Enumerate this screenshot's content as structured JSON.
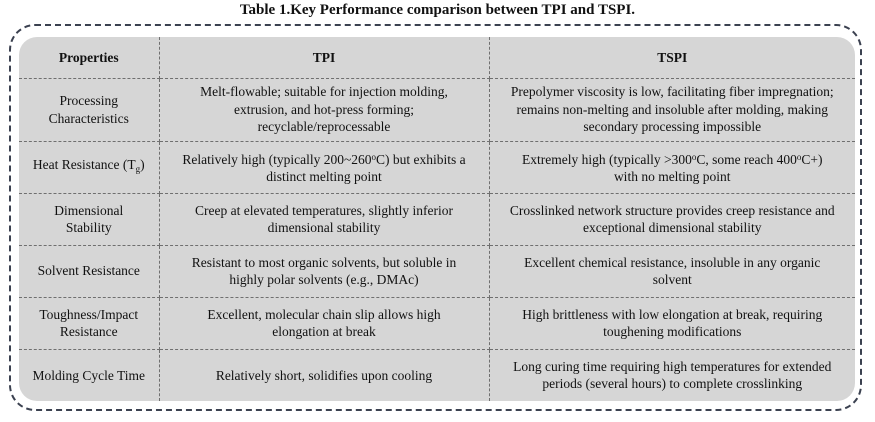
{
  "caption": "Table 1.Key Performance comparison between TPI and TSPI.",
  "headers": [
    "Properties",
    "TPI",
    "TSPI"
  ],
  "rows": [
    {
      "property": "Processing Characteristics",
      "tpi": "Melt-flowable; suitable for injection molding, extrusion, and hot-press forming; recyclable/reprocessable",
      "tspi": "Prepolymer viscosity is low, facilitating fiber impregnation; remains non-melting and insoluble after molding, making secondary processing impossible"
    },
    {
      "property_prefix": "Heat Resistance (T",
      "property_sub": "g",
      "property_suffix": ")",
      "tpi_a": "Relatively high (typically 200~260",
      "tpi_deg": "o",
      "tpi_b": "C) but exhibits a distinct melting point",
      "tspi_a": "Extremely high (typically >300",
      "tspi_deg1": "o",
      "tspi_b": "C, some reach 400",
      "tspi_deg2": "o",
      "tspi_c": "C+) with no melting point"
    },
    {
      "property": "Dimensional Stability",
      "tpi": "Creep at elevated temperatures, slightly inferior dimensional stability",
      "tspi": "Crosslinked network structure provides creep resistance and exceptional dimensional stability"
    },
    {
      "property": "Solvent Resistance",
      "tpi": "Resistant to most organic solvents, but soluble in highly polar solvents (e.g., DMAc)",
      "tspi": "Excellent chemical resistance, insoluble in any organic solvent"
    },
    {
      "property": "Toughness/Impact Resistance",
      "tpi": "Excellent, molecular chain slip allows high elongation at break",
      "tspi": "High brittleness with low elongation at break, requiring toughening modifications"
    },
    {
      "property": "Molding Cycle Time",
      "tpi": "Relatively short, solidifies upon cooling",
      "tspi": "Long curing time requiring high temperatures for extended periods (several hours) to complete crosslinking"
    }
  ]
}
